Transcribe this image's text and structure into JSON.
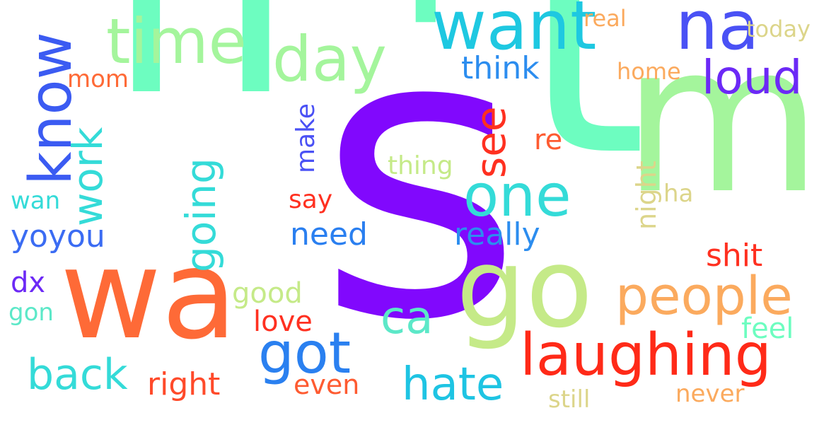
{
  "word_cloud": {
    "words": [
      {
        "text": "n",
        "color": "#6dfdc0"
      },
      {
        "text": "s",
        "color": "#8108fd"
      },
      {
        "text": "t",
        "color": "#6dfdc0"
      },
      {
        "text": "m",
        "color": "#a4f59c"
      },
      {
        "text": "'",
        "color": "#6dfdc0"
      },
      {
        "text": "wa",
        "color": "#fe6a37"
      },
      {
        "text": "go",
        "color": "#c5ea88"
      },
      {
        "text": "want",
        "color": "#1ec8e1"
      },
      {
        "text": "na",
        "color": "#4a51f5"
      },
      {
        "text": "time",
        "color": "#a4f59c"
      },
      {
        "text": "day",
        "color": "#a4f59c"
      },
      {
        "text": "know",
        "color": "#3b5bf2"
      },
      {
        "text": "one",
        "color": "#34dbd8"
      },
      {
        "text": "laughing",
        "color": "#ff2a18"
      },
      {
        "text": "people",
        "color": "#fbaa5e"
      },
      {
        "text": "got",
        "color": "#2a80f0"
      },
      {
        "text": "hate",
        "color": "#1ec4e3"
      },
      {
        "text": "loud",
        "color": "#6c29f6"
      },
      {
        "text": "see",
        "color": "#ff3020"
      },
      {
        "text": "going",
        "color": "#34dbd8"
      },
      {
        "text": "work",
        "color": "#34dbd8"
      },
      {
        "text": "back",
        "color": "#34dbd8"
      },
      {
        "text": "really",
        "color": "#2c8def"
      },
      {
        "text": "ca",
        "color": "#5ce8c8"
      },
      {
        "text": "need",
        "color": "#2a7ff0"
      },
      {
        "text": "yoyou",
        "color": "#3b6cf3"
      },
      {
        "text": "right",
        "color": "#ff4a2a"
      },
      {
        "text": "shit",
        "color": "#ff3020"
      },
      {
        "text": "think",
        "color": "#2c8def"
      },
      {
        "text": "night",
        "color": "#dcd58a"
      },
      {
        "text": "good",
        "color": "#c5ea88"
      },
      {
        "text": "love",
        "color": "#ff3020"
      },
      {
        "text": "even",
        "color": "#fe5b31"
      },
      {
        "text": "feel",
        "color": "#6dfdc0"
      },
      {
        "text": "make",
        "color": "#4a51f5"
      },
      {
        "text": "re",
        "color": "#fe5b31"
      },
      {
        "text": "thing",
        "color": "#c5ea88"
      },
      {
        "text": "home",
        "color": "#fbaa5e"
      },
      {
        "text": "real",
        "color": "#fbaa5e"
      },
      {
        "text": "today",
        "color": "#dcd58a"
      },
      {
        "text": "mom",
        "color": "#fe6a37"
      },
      {
        "text": "say",
        "color": "#ff3020"
      },
      {
        "text": "ha",
        "color": "#dcd58a"
      },
      {
        "text": "wan",
        "color": "#34dbd8"
      },
      {
        "text": "dx",
        "color": "#6c29f6"
      },
      {
        "text": "gon",
        "color": "#5ce8c8"
      },
      {
        "text": "never",
        "color": "#fbaa5e"
      },
      {
        "text": "still",
        "color": "#dcd58a"
      }
    ]
  }
}
